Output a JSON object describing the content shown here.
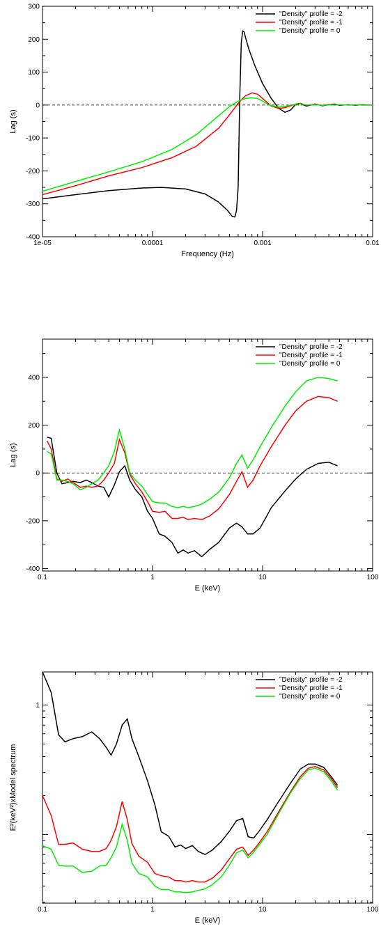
{
  "chart_data": [
    {
      "type": "line",
      "xscale": "log",
      "xlim": [
        1e-05,
        0.01
      ],
      "ylim": [
        -400,
        300
      ],
      "xlabel": "Frequency (Hz)",
      "ylabel": "Lag (s)",
      "xtick_labels": [
        "1e-05",
        "0.0001",
        "0.001",
        "0.01"
      ],
      "xticks": [
        1e-05,
        0.0001,
        0.001,
        0.01
      ],
      "yticks": [
        -400,
        -300,
        -200,
        -100,
        0,
        100,
        200,
        300
      ],
      "ytick_labels": [
        "-400",
        "-300",
        "-200",
        "-100",
        "0",
        "100",
        "200",
        "300"
      ],
      "zero_line": 0,
      "legend": "top-right",
      "series": [
        {
          "name": "\"Density\" profile = -2",
          "color": "#000000",
          "x": [
            1e-05,
            2e-05,
            4e-05,
            8e-05,
            0.00012,
            0.0002,
            0.0003,
            0.0004,
            0.00048,
            0.00053,
            0.00056,
            0.00058,
            0.0006,
            0.00062,
            0.00064,
            0.00066,
            0.00068,
            0.0007,
            0.00075,
            0.00085,
            0.001,
            0.0012,
            0.0014,
            0.0016,
            0.0018,
            0.002,
            0.0022,
            0.0025,
            0.003,
            0.0035,
            0.004,
            0.0045,
            0.005,
            0.006,
            0.007,
            0.008,
            0.01
          ],
          "y": [
            -285,
            -272,
            -260,
            -252,
            -250,
            -255,
            -270,
            -295,
            -320,
            -338,
            -340,
            -320,
            -250,
            20,
            190,
            225,
            222,
            205,
            170,
            120,
            65,
            20,
            -10,
            -22,
            -15,
            2,
            5,
            -3,
            3,
            -2,
            1,
            3,
            -1,
            1,
            -1,
            1,
            0
          ]
        },
        {
          "name": "\"Density\" profile = -1",
          "color": "#ff0000",
          "x": [
            1e-05,
            2e-05,
            4e-05,
            8e-05,
            0.00015,
            0.00025,
            0.0004,
            0.0005,
            0.0006,
            0.00066,
            0.0007,
            0.0008,
            0.0009,
            0.001,
            0.0011,
            0.0012,
            0.0014,
            0.0016,
            0.0018,
            0.002,
            0.0022,
            0.0025,
            0.003,
            0.0035,
            0.004,
            0.0045,
            0.005,
            0.006,
            0.007,
            0.008,
            0.01
          ],
          "y": [
            -272,
            -245,
            -215,
            -190,
            -160,
            -125,
            -70,
            -30,
            5,
            20,
            28,
            37,
            33,
            20,
            8,
            -3,
            -10,
            -8,
            -2,
            3,
            5,
            0,
            2,
            -1,
            2,
            0,
            1,
            0,
            1,
            0,
            0
          ]
        },
        {
          "name": "\"Density\" profile = 0",
          "color": "#00ee00",
          "x": [
            1e-05,
            2e-05,
            4e-05,
            8e-05,
            0.00015,
            0.00025,
            0.0004,
            0.0005,
            0.0006,
            0.0007,
            0.0008,
            0.0009,
            0.001,
            0.0011,
            0.0012,
            0.0014,
            0.0016,
            0.0018,
            0.002,
            0.0022,
            0.0025,
            0.003,
            0.0035,
            0.004,
            0.0045,
            0.005,
            0.006,
            0.007,
            0.008,
            0.01
          ],
          "y": [
            -262,
            -232,
            -203,
            -172,
            -135,
            -90,
            -32,
            -5,
            12,
            20,
            22,
            20,
            12,
            4,
            -2,
            -6,
            -4,
            0,
            2,
            3,
            0,
            1,
            -1,
            1,
            0,
            1,
            0,
            0,
            0,
            0
          ]
        }
      ]
    },
    {
      "type": "line",
      "xscale": "log",
      "xlim": [
        0.1,
        100
      ],
      "ylim": [
        -410,
        560
      ],
      "xlabel": "E (keV)",
      "ylabel": "Lag (s)",
      "xticks": [
        0.1,
        1,
        10,
        100
      ],
      "xtick_labels": [
        "0.1",
        "1",
        "10",
        "100"
      ],
      "yticks": [
        -400,
        -200,
        0,
        200,
        400
      ],
      "ytick_labels": [
        "-400",
        "-200",
        "0",
        "200",
        "400"
      ],
      "zero_line": 0,
      "legend": "top-right",
      "series": [
        {
          "name": "\"Density\" profile = -2",
          "color": "#000000",
          "x": [
            0.11,
            0.12,
            0.135,
            0.15,
            0.17,
            0.19,
            0.22,
            0.25,
            0.28,
            0.32,
            0.36,
            0.4,
            0.45,
            0.5,
            0.56,
            0.62,
            0.7,
            0.8,
            0.9,
            1.0,
            1.15,
            1.3,
            1.5,
            1.7,
            1.9,
            2.1,
            2.4,
            2.8,
            3.3,
            4.0,
            5.0,
            5.8,
            6.5,
            7.3,
            8.2,
            9.5,
            12,
            16,
            20,
            25,
            32,
            40,
            48
          ],
          "y": [
            150,
            145,
            0,
            -45,
            -40,
            -35,
            -40,
            -30,
            -40,
            -55,
            -60,
            -100,
            -50,
            5,
            30,
            -30,
            -70,
            -100,
            -160,
            -190,
            -255,
            -265,
            -290,
            -335,
            -322,
            -335,
            -325,
            -350,
            -320,
            -290,
            -230,
            -210,
            -225,
            -255,
            -255,
            -230,
            -145,
            -75,
            -25,
            15,
            40,
            45,
            30
          ]
        },
        {
          "name": "\"Density\" profile = -1",
          "color": "#ff0000",
          "x": [
            0.11,
            0.12,
            0.135,
            0.15,
            0.17,
            0.19,
            0.22,
            0.25,
            0.28,
            0.32,
            0.36,
            0.4,
            0.45,
            0.5,
            0.56,
            0.62,
            0.7,
            0.8,
            0.9,
            1.0,
            1.15,
            1.3,
            1.5,
            1.7,
            1.9,
            2.1,
            2.4,
            2.8,
            3.3,
            4.0,
            5.0,
            5.8,
            6.5,
            7.3,
            8.2,
            9.5,
            12,
            16,
            20,
            25,
            32,
            40,
            48
          ],
          "y": [
            135,
            100,
            -25,
            -35,
            -25,
            -40,
            -60,
            -55,
            -60,
            -55,
            -30,
            0,
            40,
            140,
            85,
            -5,
            -45,
            -80,
            -120,
            -160,
            -165,
            -160,
            -190,
            -190,
            -185,
            -195,
            -190,
            -195,
            -180,
            -150,
            -90,
            -35,
            5,
            -60,
            -30,
            30,
            110,
            200,
            260,
            300,
            320,
            315,
            300
          ]
        },
        {
          "name": "\"Density\" profile = 0",
          "color": "#00ee00",
          "x": [
            0.11,
            0.12,
            0.135,
            0.15,
            0.17,
            0.19,
            0.22,
            0.25,
            0.28,
            0.32,
            0.36,
            0.4,
            0.45,
            0.5,
            0.56,
            0.62,
            0.7,
            0.8,
            0.9,
            1.0,
            1.15,
            1.3,
            1.5,
            1.7,
            1.9,
            2.1,
            2.4,
            2.8,
            3.3,
            4.0,
            5.0,
            5.8,
            6.5,
            7.3,
            8.2,
            9.5,
            12,
            16,
            20,
            25,
            32,
            40,
            48
          ],
          "y": [
            90,
            80,
            -30,
            -30,
            -35,
            -45,
            -70,
            -60,
            -45,
            -30,
            0,
            30,
            90,
            180,
            100,
            0,
            -30,
            -55,
            -90,
            -120,
            -125,
            -125,
            -140,
            -145,
            -140,
            -145,
            -140,
            -130,
            -110,
            -80,
            -20,
            40,
            75,
            20,
            55,
            110,
            190,
            280,
            340,
            385,
            400,
            395,
            385
          ]
        }
      ]
    },
    {
      "type": "line",
      "xscale": "log",
      "yscale": "log",
      "xlim": [
        0.1,
        100
      ],
      "ylim": [
        0.0295,
        1.8
      ],
      "xlabel": "E (keV)",
      "ylabel": "E²(keV²)xModel spectrum",
      "xticks": [
        0.1,
        1,
        10,
        100
      ],
      "xtick_labels": [
        "0.1",
        "1",
        "10",
        "100"
      ],
      "yticks": [
        1
      ],
      "ytick_labels": [
        "1"
      ],
      "legend": "top-right",
      "series": [
        {
          "name": "\"Density\" profile = -2",
          "color": "#000000",
          "x": [
            0.1,
            0.12,
            0.14,
            0.16,
            0.19,
            0.23,
            0.28,
            0.33,
            0.38,
            0.42,
            0.47,
            0.53,
            0.59,
            0.65,
            0.75,
            0.9,
            1.05,
            1.2,
            1.4,
            1.6,
            1.8,
            2.0,
            2.3,
            2.6,
            3.0,
            3.5,
            4.2,
            5.0,
            5.8,
            6.6,
            7.4,
            8.3,
            9.3,
            11,
            14,
            18,
            22,
            26,
            30,
            36,
            42,
            48
          ],
          "y": [
            1.8,
            1.25,
            0.59,
            0.52,
            0.55,
            0.57,
            0.62,
            0.55,
            0.47,
            0.41,
            0.5,
            0.7,
            0.78,
            0.55,
            0.4,
            0.26,
            0.17,
            0.105,
            0.097,
            0.08,
            0.083,
            0.078,
            0.082,
            0.074,
            0.07,
            0.076,
            0.088,
            0.106,
            0.128,
            0.133,
            0.096,
            0.094,
            0.106,
            0.13,
            0.18,
            0.25,
            0.32,
            0.35,
            0.35,
            0.33,
            0.28,
            0.24
          ]
        },
        {
          "name": "\"Density\" profile = -1",
          "color": "#ff0000",
          "x": [
            0.1,
            0.12,
            0.14,
            0.16,
            0.19,
            0.23,
            0.28,
            0.33,
            0.38,
            0.42,
            0.47,
            0.53,
            0.59,
            0.65,
            0.75,
            0.9,
            1.05,
            1.2,
            1.4,
            1.6,
            1.8,
            2.0,
            2.3,
            2.6,
            3.0,
            3.5,
            4.2,
            5.0,
            5.8,
            6.6,
            7.4,
            8.3,
            9.3,
            11,
            14,
            18,
            22,
            26,
            30,
            36,
            42,
            48
          ],
          "y": [
            0.2,
            0.14,
            0.084,
            0.084,
            0.086,
            0.077,
            0.074,
            0.074,
            0.078,
            0.09,
            0.115,
            0.18,
            0.13,
            0.085,
            0.068,
            0.061,
            0.05,
            0.048,
            0.047,
            0.044,
            0.044,
            0.043,
            0.044,
            0.043,
            0.043,
            0.046,
            0.053,
            0.065,
            0.077,
            0.08,
            0.069,
            0.076,
            0.086,
            0.105,
            0.15,
            0.215,
            0.28,
            0.325,
            0.335,
            0.315,
            0.27,
            0.23
          ]
        },
        {
          "name": "\"Density\" profile = 0",
          "color": "#00ee00",
          "x": [
            0.1,
            0.12,
            0.14,
            0.16,
            0.19,
            0.23,
            0.28,
            0.33,
            0.38,
            0.42,
            0.47,
            0.53,
            0.59,
            0.65,
            0.75,
            0.9,
            1.05,
            1.2,
            1.4,
            1.6,
            1.8,
            2.0,
            2.3,
            2.6,
            3.0,
            3.5,
            4.2,
            5.0,
            5.8,
            6.6,
            7.4,
            8.3,
            9.3,
            11,
            14,
            18,
            22,
            26,
            30,
            36,
            42,
            48
          ],
          "y": [
            0.082,
            0.077,
            0.058,
            0.057,
            0.057,
            0.051,
            0.052,
            0.057,
            0.058,
            0.066,
            0.08,
            0.12,
            0.09,
            0.06,
            0.05,
            0.047,
            0.04,
            0.0375,
            0.0375,
            0.036,
            0.036,
            0.0355,
            0.036,
            0.037,
            0.038,
            0.041,
            0.047,
            0.058,
            0.072,
            0.076,
            0.066,
            0.073,
            0.083,
            0.1,
            0.145,
            0.21,
            0.27,
            0.315,
            0.325,
            0.305,
            0.26,
            0.22
          ]
        }
      ]
    }
  ]
}
